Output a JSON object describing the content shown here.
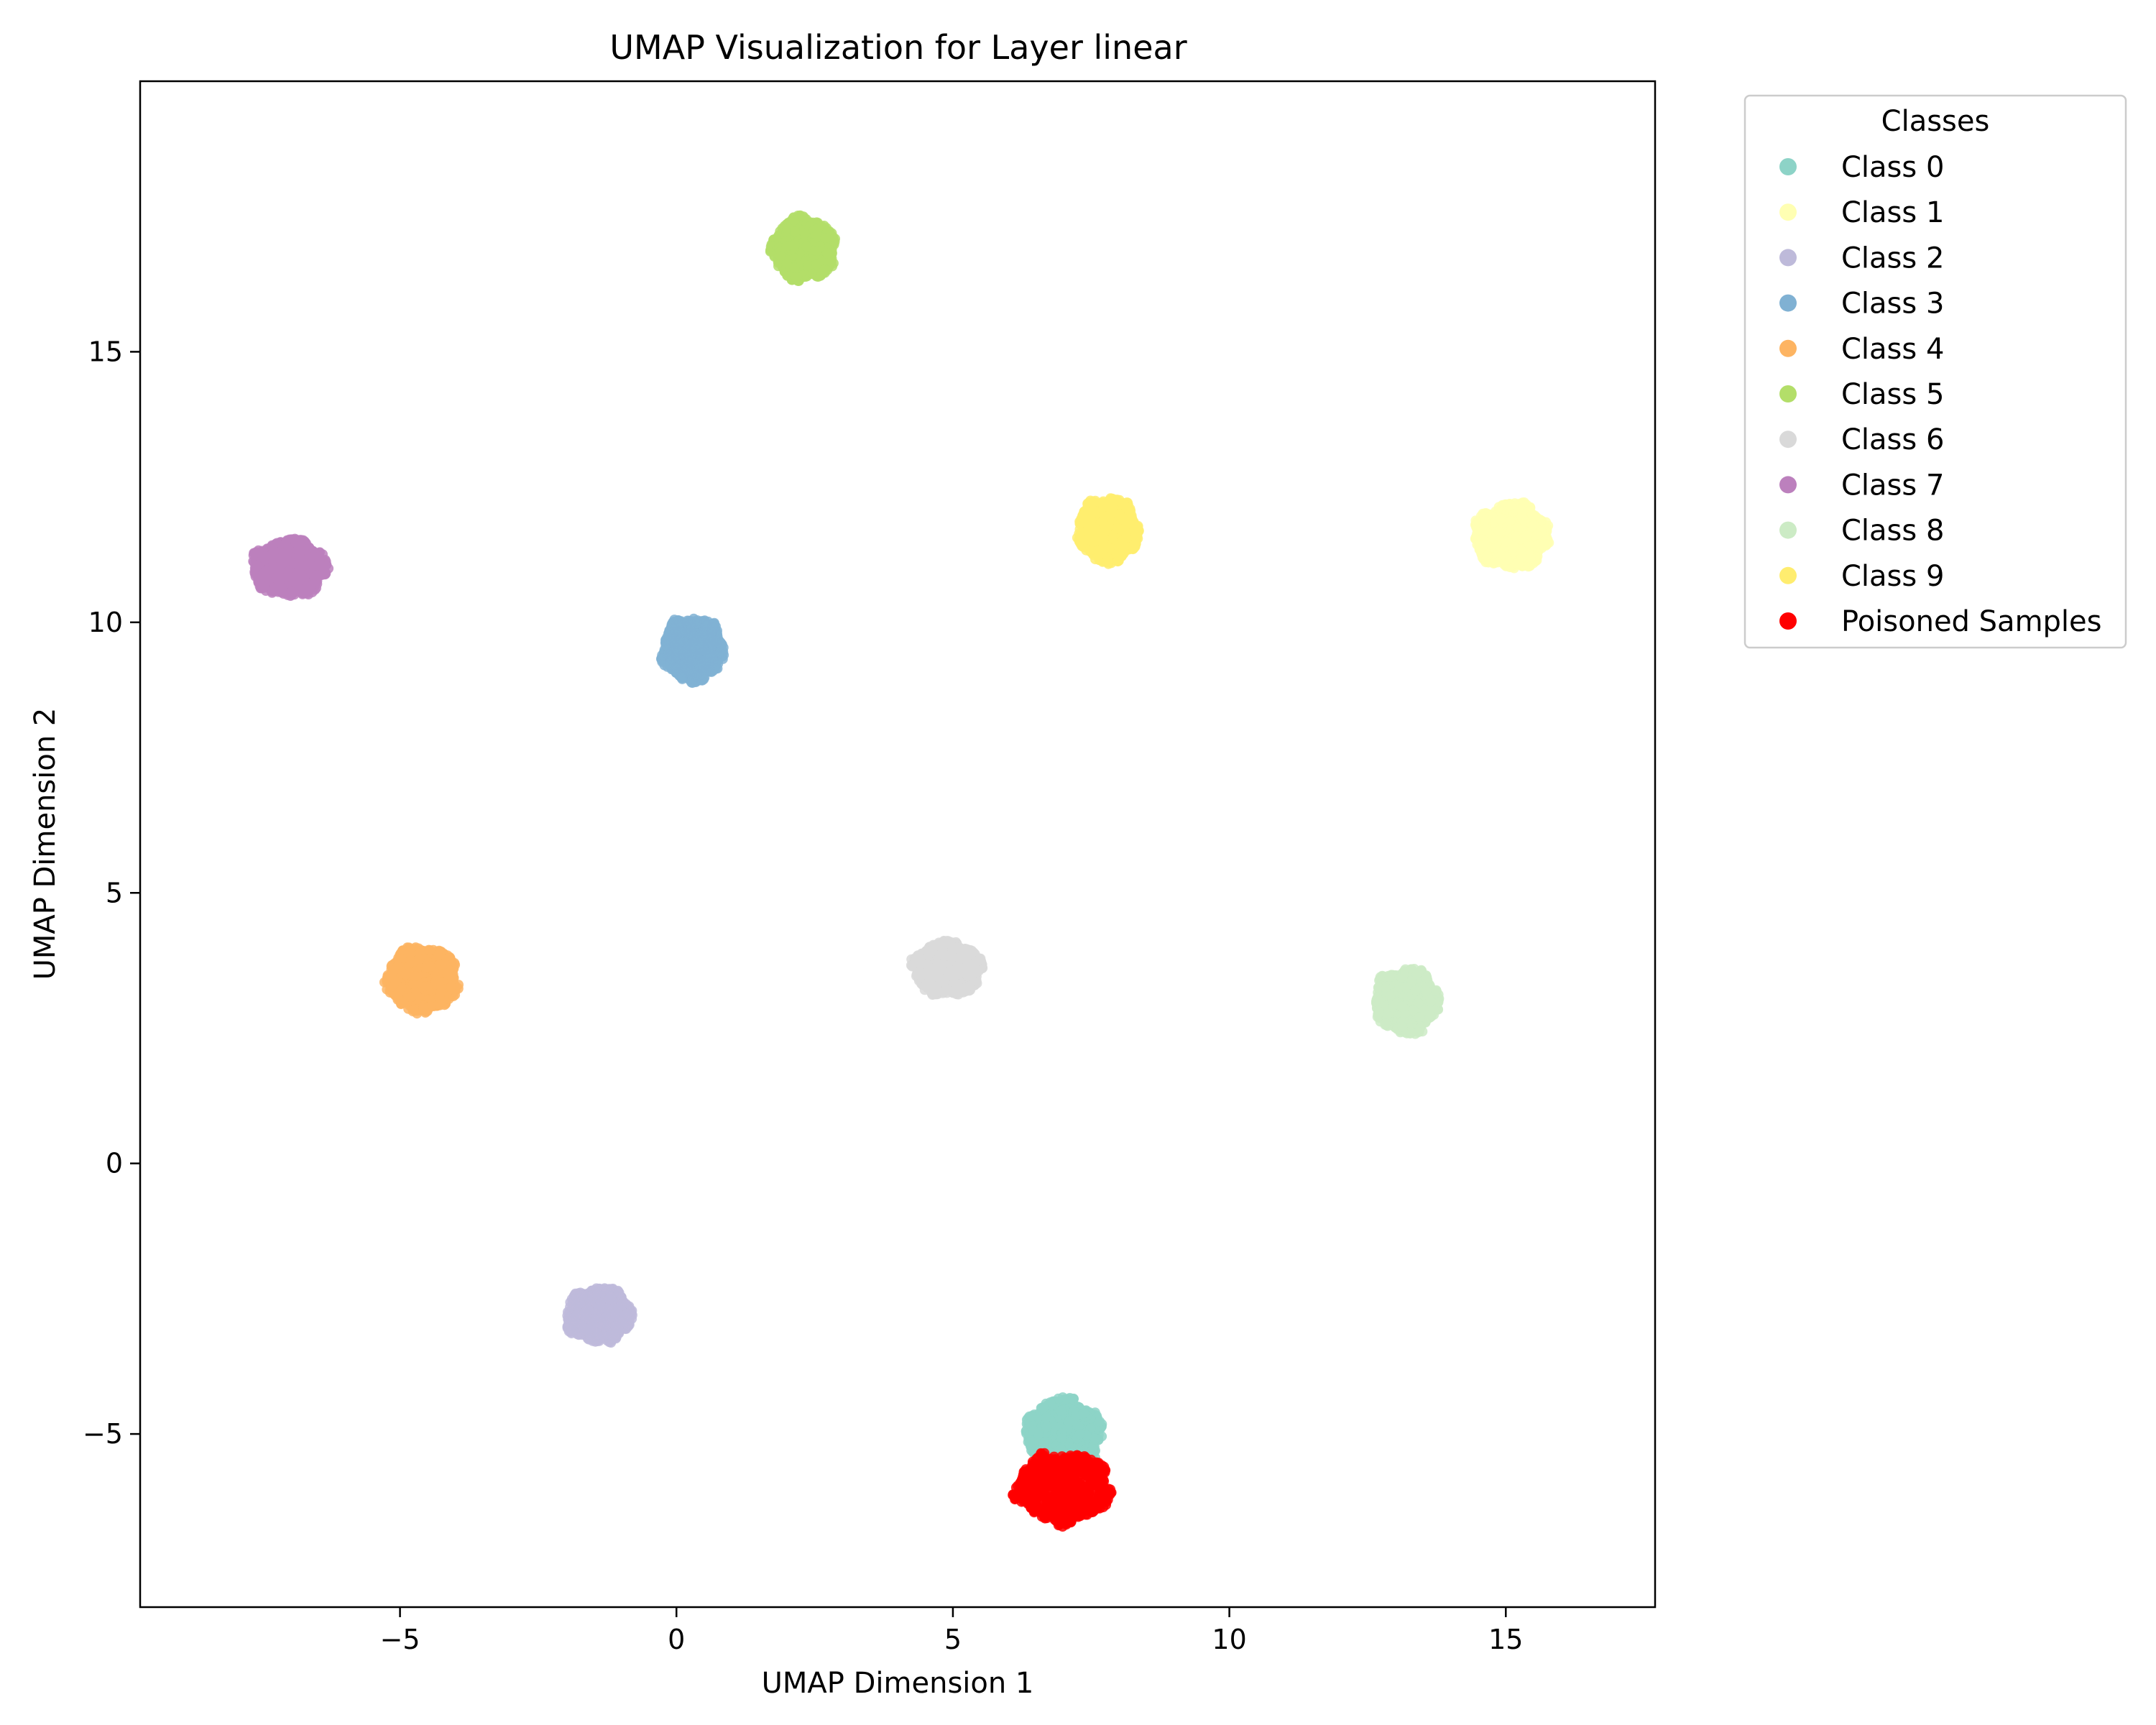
{
  "chart_data": {
    "type": "scatter",
    "title": "UMAP Visualization for Layer linear",
    "xlabel": "UMAP Dimension 1",
    "ylabel": "UMAP Dimension 2",
    "xlim": [
      -9.7,
      17.7
    ],
    "ylim": [
      -8.2,
      20.0
    ],
    "xticks": [
      -5,
      0,
      5,
      10,
      15
    ],
    "yticks": [
      -5,
      0,
      5,
      10,
      15
    ],
    "grid": false,
    "legend": {
      "title": "Classes",
      "placement": "outside-top-right",
      "entries": [
        "Class 0",
        "Class 1",
        "Class 2",
        "Class 3",
        "Class 4",
        "Class 5",
        "Class 6",
        "Class 7",
        "Class 8",
        "Class 9",
        "Poisoned Samples"
      ]
    },
    "series": [
      {
        "name": "Class 0",
        "color": "#8dd3c7",
        "center": [
          7.0,
          -5.0
        ],
        "spread": [
          1.4,
          1.3
        ],
        "approx_range_x": [
          5.5,
          8.7
        ],
        "approx_range_y": [
          -6.5,
          -3.1
        ]
      },
      {
        "name": "Class 1",
        "color": "#ffffb3",
        "center": [
          15.1,
          11.6
        ],
        "spread": [
          1.35,
          1.2
        ],
        "approx_range_x": [
          13.8,
          16.5
        ],
        "approx_range_y": [
          10.5,
          12.8
        ]
      },
      {
        "name": "Class 2",
        "color": "#bebada",
        "center": [
          -1.4,
          -2.8
        ],
        "spread": [
          1.2,
          1.0
        ],
        "approx_range_x": [
          -2.7,
          -0.2
        ],
        "approx_range_y": [
          -3.9,
          -1.7
        ]
      },
      {
        "name": "Class 3",
        "color": "#80b1d3",
        "center": [
          0.3,
          9.5
        ],
        "spread": [
          1.1,
          1.2
        ],
        "approx_range_x": [
          -0.8,
          1.5
        ],
        "approx_range_y": [
          8.2,
          10.7
        ]
      },
      {
        "name": "Class 4",
        "color": "#fdb462",
        "center": [
          -4.6,
          3.4
        ],
        "spread": [
          1.3,
          1.2
        ],
        "approx_range_x": [
          -6.1,
          -3.3
        ],
        "approx_range_y": [
          2.2,
          4.5
        ]
      },
      {
        "name": "Class 5",
        "color": "#b3de69",
        "center": [
          2.3,
          16.9
        ],
        "spread": [
          1.15,
          1.15
        ],
        "approx_range_x": [
          1.2,
          3.5
        ],
        "approx_range_y": [
          15.7,
          18.1
        ]
      },
      {
        "name": "Class 6",
        "color": "#d9d9d9",
        "center": [
          4.9,
          3.6
        ],
        "spread": [
          1.25,
          1.0
        ],
        "approx_range_x": [
          3.7,
          6.3
        ],
        "approx_range_y": [
          2.6,
          4.6
        ]
      },
      {
        "name": "Class 7",
        "color": "#bc80bd",
        "center": [
          -7.0,
          11.0
        ],
        "spread": [
          1.35,
          1.05
        ],
        "approx_range_x": [
          -8.5,
          -5.7
        ],
        "approx_range_y": [
          10.0,
          12.1
        ]
      },
      {
        "name": "Class 8",
        "color": "#ccebc5",
        "center": [
          13.2,
          3.0
        ],
        "spread": [
          1.15,
          1.2
        ],
        "approx_range_x": [
          12.0,
          14.3
        ],
        "approx_range_y": [
          1.8,
          4.2
        ]
      },
      {
        "name": "Class 9",
        "color": "#ffed6f",
        "center": [
          7.8,
          11.7
        ],
        "spread": [
          1.1,
          1.2
        ],
        "approx_range_x": [
          6.8,
          9.0
        ],
        "approx_range_y": [
          10.5,
          13.0
        ]
      },
      {
        "name": "Poisoned Samples",
        "color": "#ff0000",
        "center": [
          7.0,
          -6.0
        ],
        "spread": [
          1.7,
          1.3
        ],
        "approx_range_x": [
          5.0,
          8.8
        ],
        "approx_range_y": [
          -7.9,
          -4.0
        ]
      }
    ]
  }
}
